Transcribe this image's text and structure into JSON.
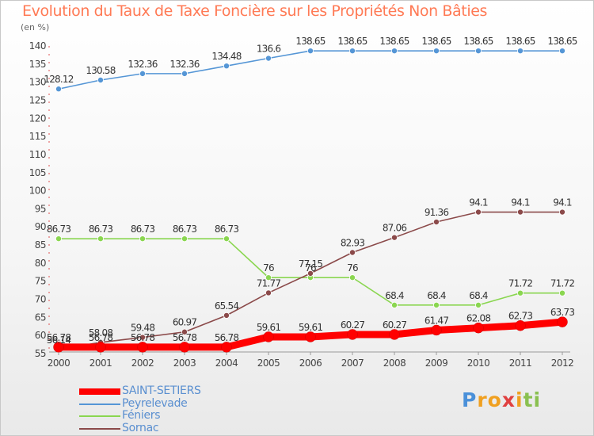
{
  "chart_data": {
    "type": "line",
    "title": "Evolution du Taux de Taxe Foncière sur les Propriétés Non Bâties",
    "unit": "(en %)",
    "x": [
      "2000",
      "2001",
      "2002",
      "2003",
      "2004",
      "2005",
      "2006",
      "2007",
      "2008",
      "2009",
      "2010",
      "2011",
      "2012"
    ],
    "ylim": [
      55,
      140
    ],
    "yticks": [
      55,
      60,
      65,
      70,
      75,
      80,
      85,
      90,
      95,
      100,
      105,
      110,
      115,
      120,
      125,
      130,
      135,
      140
    ],
    "grid": false,
    "legend_position": "bottom-left",
    "series": [
      {
        "name": "SAINT-SETIERS",
        "color": "#ff0000",
        "values": [
          56.78,
          56.78,
          56.78,
          56.78,
          56.78,
          59.61,
          59.61,
          60.27,
          60.27,
          61.47,
          62.08,
          62.73,
          63.73
        ],
        "labels": [
          "56.78",
          "56.78",
          "56.78",
          "56.78",
          "56.78",
          "59.61",
          "59.61",
          "60.27",
          "60.27",
          "61.47",
          "62.08",
          "62.73",
          "63.73"
        ]
      },
      {
        "name": "Peyrelevade",
        "color": "#5596d6",
        "values": [
          128.12,
          130.58,
          132.36,
          132.36,
          134.48,
          136.6,
          138.65,
          138.65,
          138.65,
          138.65,
          138.65,
          138.65,
          138.65
        ],
        "labels": [
          "128.12",
          "130.58",
          "132.36",
          "132.36",
          "134.48",
          "136.6",
          "138.65",
          "138.65",
          "138.65",
          "138.65",
          "138.65",
          "138.65",
          "138.65"
        ]
      },
      {
        "name": "Féniers",
        "color": "#8ad650",
        "values": [
          86.73,
          86.73,
          86.73,
          86.73,
          86.73,
          76,
          76,
          76,
          68.4,
          68.4,
          68.4,
          71.72,
          71.72
        ],
        "labels": [
          "86.73",
          "86.73",
          "86.73",
          "86.73",
          "86.73",
          "76",
          "76",
          "76",
          "68.4",
          "68.4",
          "68.4",
          "71.72",
          "71.72"
        ]
      },
      {
        "name": "Sornac",
        "color": "#8b4a4a",
        "values": [
          56.14,
          58.08,
          59.48,
          60.97,
          65.54,
          71.77,
          77.15,
          82.93,
          87.06,
          91.36,
          94.1,
          94.1,
          94.1
        ],
        "labels": [
          "56.14",
          "58.08",
          "59.48",
          "60.97",
          "65.54",
          "71.77",
          "77.15",
          "82.93",
          "87.06",
          "91.36",
          "94.1",
          "94.1",
          "94.1"
        ]
      }
    ]
  },
  "logo": {
    "letters": [
      "P",
      "r",
      "o",
      "x",
      "i",
      "t",
      "i"
    ],
    "colors": [
      "#4a90d9",
      "#f0a020",
      "#f0a020",
      "#e04040",
      "#f0a020",
      "#8ac050",
      "#8ac050"
    ]
  }
}
